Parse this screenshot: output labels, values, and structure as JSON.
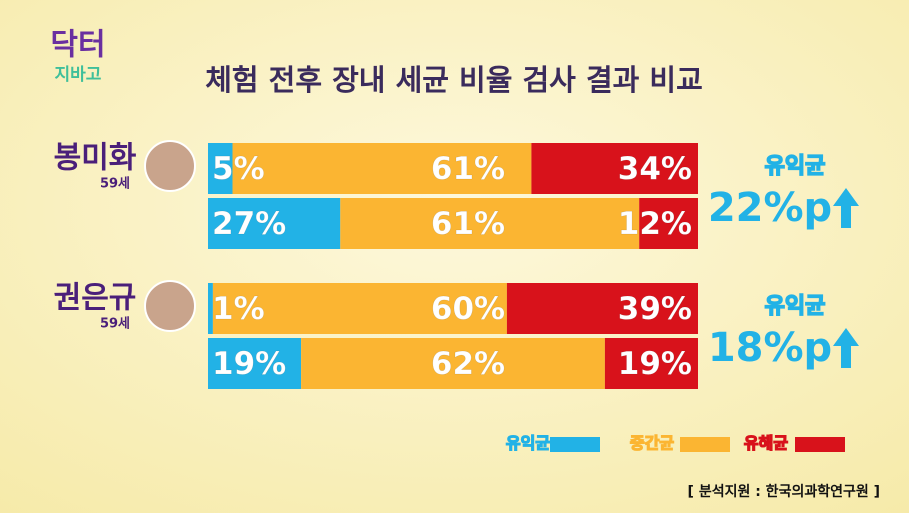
{
  "logo": {
    "top": "닥터",
    "bottom": "지바고"
  },
  "chart_data": {
    "type": "bar",
    "orientation": "horizontal",
    "stacked": true,
    "title": "체험 전후 장내 세균 비율 검사 결과 비교",
    "categories": [
      null,
      null,
      null,
      null
    ],
    "groups": [
      {
        "name": "봉미화",
        "age": "59세",
        "change_title": "유익균",
        "change_label": "22%p"
      },
      {
        "name": "권은규",
        "age": "59세",
        "change_title": "유익균",
        "change_label": "18%p"
      }
    ],
    "xlim": [
      0,
      100
    ],
    "series": [
      {
        "name": "유익균",
        "color": "#22b2e6",
        "values": [
          5,
          27,
          1,
          19
        ],
        "value_labels": [
          "5%",
          "27%",
          "1%",
          "19%"
        ]
      },
      {
        "name": "중간균",
        "color": "#fbb532",
        "values": [
          61,
          61,
          60,
          62
        ],
        "value_labels": [
          "61%",
          "61%",
          "60%",
          "62%"
        ]
      },
      {
        "name": "유해균",
        "color": "#d8121b",
        "values": [
          34,
          12,
          39,
          19
        ],
        "value_labels": [
          "34%",
          "12%",
          "39%",
          "19%"
        ]
      }
    ],
    "source": "[ 분석지원 : 한국의과학연구원 ]"
  }
}
